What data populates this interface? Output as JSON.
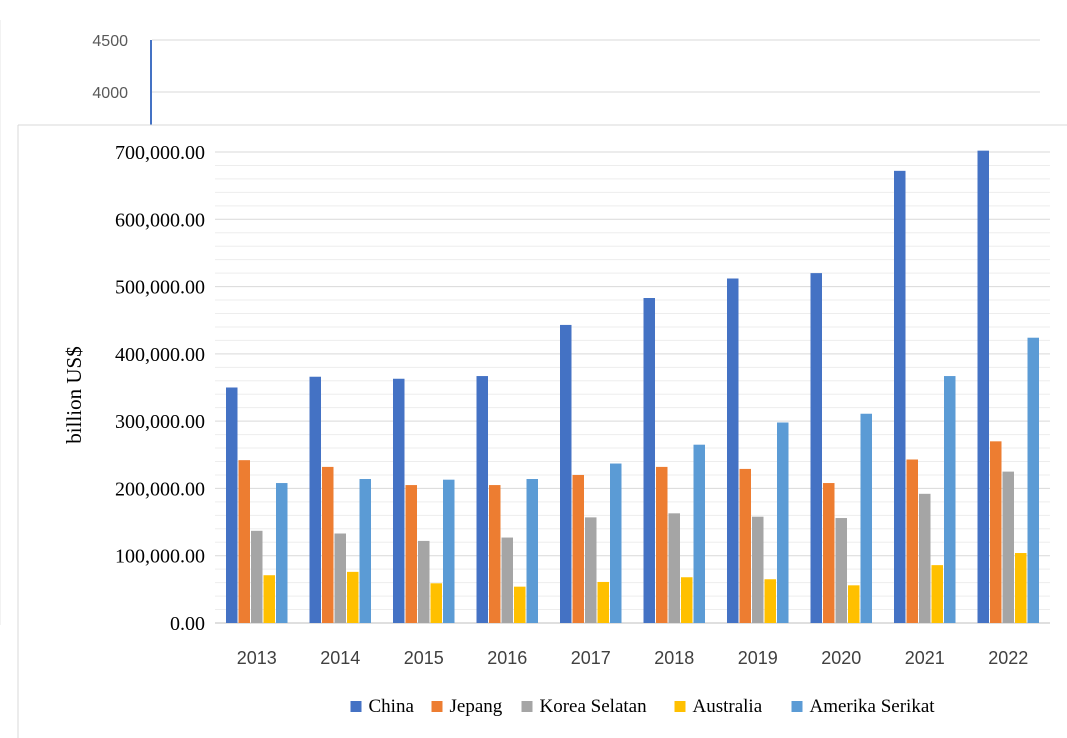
{
  "background_chart": {
    "y_ticks": [
      "4500",
      "4000"
    ],
    "axis_color": "#4472C4",
    "grid_color": "#D9D9D9"
  },
  "chart_data": {
    "type": "bar",
    "title": "",
    "xlabel": "",
    "ylabel": "billion US$",
    "categories": [
      "2013",
      "2014",
      "2015",
      "2016",
      "2017",
      "2018",
      "2019",
      "2020",
      "2021",
      "2022"
    ],
    "ylim": [
      0,
      700000
    ],
    "y_ticks": [
      "0.00",
      "100,000.00",
      "200,000.00",
      "300,000.00",
      "400,000.00",
      "500,000.00",
      "600,000.00",
      "700,000.00"
    ],
    "grid": true,
    "legend_position": "bottom",
    "series": [
      {
        "name": "China",
        "color": "#4472C4",
        "values": [
          350000,
          366000,
          363000,
          367000,
          443000,
          483000,
          512000,
          520000,
          672000,
          702000
        ]
      },
      {
        "name": "Jepang",
        "color": "#ED7D31",
        "values": [
          242000,
          232000,
          205000,
          205000,
          220000,
          232000,
          229000,
          208000,
          243000,
          270000
        ]
      },
      {
        "name": "Korea Selatan",
        "color": "#A5A5A5",
        "values": [
          137000,
          133000,
          122000,
          127000,
          157000,
          163000,
          158000,
          156000,
          192000,
          225000
        ]
      },
      {
        "name": "Australia",
        "color": "#FFC000",
        "values": [
          71000,
          76000,
          59000,
          54000,
          61000,
          68000,
          65000,
          56000,
          86000,
          104000
        ]
      },
      {
        "name": "Amerika Serikat",
        "color": "#5B9BD5",
        "values": [
          208000,
          214000,
          213000,
          214000,
          237000,
          265000,
          298000,
          311000,
          367000,
          424000
        ]
      }
    ]
  }
}
